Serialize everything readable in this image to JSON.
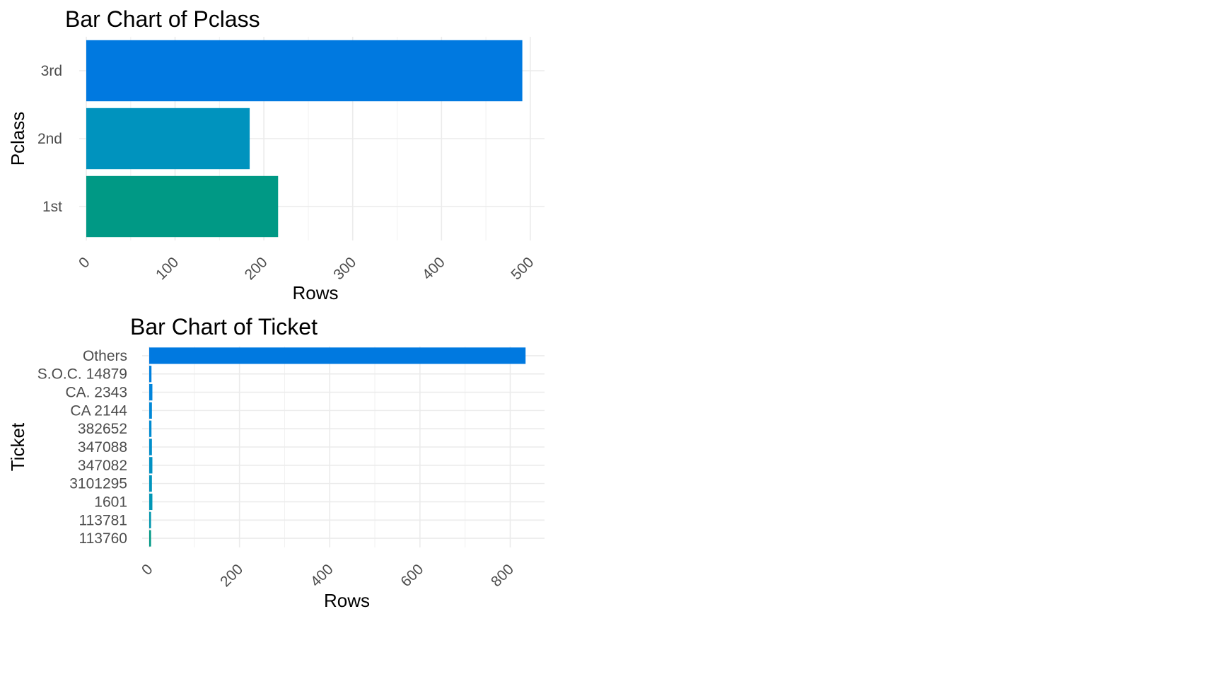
{
  "chart_data": [
    {
      "type": "bar",
      "orientation": "horizontal",
      "title": "Bar Chart of Pclass",
      "xlabel": "Rows",
      "ylabel": "Pclass",
      "categories": [
        "1st",
        "2nd",
        "3rd"
      ],
      "values": [
        216,
        184,
        491
      ],
      "xlim": [
        0,
        516
      ],
      "xticks": [
        0,
        100,
        200,
        300,
        400,
        500
      ],
      "colors": [
        "#009985",
        "#0093BE",
        "#0079E0"
      ],
      "grid": true,
      "legend": "none"
    },
    {
      "type": "bar",
      "orientation": "horizontal",
      "title": "Bar Chart of Ticket",
      "xlabel": "Rows",
      "ylabel": "Ticket",
      "categories": [
        "113760",
        "113781",
        "1601",
        "3101295",
        "347082",
        "347088",
        "382652",
        "CA 2144",
        "CA. 2343",
        "S.O.C. 14879",
        "Others"
      ],
      "values": [
        4,
        4,
        7,
        6,
        7,
        6,
        5,
        6,
        7,
        5,
        834
      ],
      "xlim": [
        0,
        876
      ],
      "xticks": [
        0,
        200,
        400,
        600,
        800
      ],
      "colors": [
        "#009985",
        "#0096AD",
        "#0096B5",
        "#0094BC",
        "#0091C3",
        "#008ECA",
        "#008BD1",
        "#0088D7",
        "#0084DB",
        "#0080DE",
        "#0079E0"
      ],
      "grid": true,
      "legend": "none"
    }
  ]
}
